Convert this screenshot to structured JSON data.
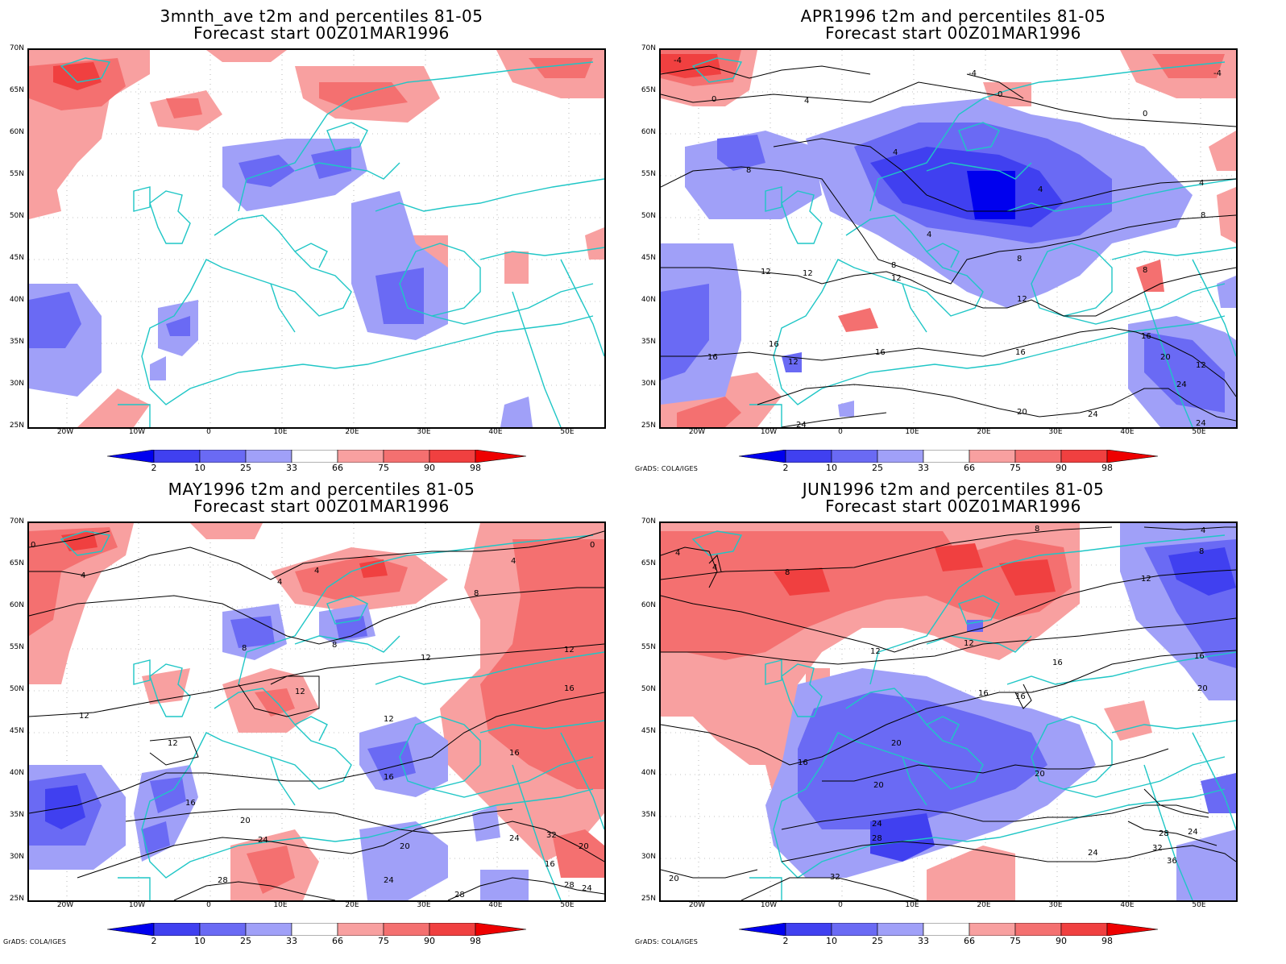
{
  "colors": {
    "coast": "#1fc6c6",
    "contour": "#000000",
    "cold_very": "#0000ee",
    "cold_strong": "#4040f0",
    "cold_mid": "#6a6af4",
    "cold_light": "#a0a0f8",
    "warm_light": "#f8a0a0",
    "warm_mid": "#f47070",
    "warm_strong": "#f04040",
    "warm_very": "#ee0000"
  },
  "axes": {
    "lat_labels": [
      "70N",
      "65N",
      "60N",
      "55N",
      "50N",
      "45N",
      "40N",
      "35N",
      "30N",
      "25N"
    ],
    "lon_labels": [
      "20W",
      "10W",
      "0",
      "10E",
      "20E",
      "30E",
      "40E",
      "50E"
    ]
  },
  "colorbar": {
    "labels": [
      "2",
      "10",
      "25",
      "33",
      "66",
      "75",
      "90",
      "98"
    ],
    "colors": [
      "#0000ee",
      "#4040f0",
      "#6a6af4",
      "#a0a0f8",
      "#ffffff",
      "#f8a0a0",
      "#f47070",
      "#f04040",
      "#ee0000"
    ]
  },
  "credit": "GrADS: COLA/IGES",
  "panels": [
    {
      "id": "3mnth",
      "title_line1": "3mnth_ave t2m and percentiles 81-05",
      "title_line2": "Forecast start 00Z01MAR1996",
      "show_credit": false,
      "contour_labels": []
    },
    {
      "id": "apr",
      "title_line1": "APR1996 t2m and percentiles 81-05",
      "title_line2": "Forecast start 00Z01MAR1996",
      "show_credit": true,
      "contour_labels": [
        "-4",
        "0",
        "4",
        "0",
        "-4",
        "4",
        "0",
        "8",
        "4",
        "4",
        "-4",
        "8",
        "4",
        "12",
        "8",
        "12",
        "8",
        "8",
        "12",
        "16",
        "12",
        "16",
        "16",
        "16",
        "12",
        "16",
        "20",
        "12",
        "24",
        "20",
        "24",
        "24",
        "24"
      ]
    },
    {
      "id": "may",
      "title_line1": "MAY1996 t2m and percentiles 81-05",
      "title_line2": "Forecast start 00Z01MAR1996",
      "show_credit": true,
      "contour_labels": [
        "0",
        "4",
        "4",
        "4",
        "4",
        "0",
        "8",
        "8",
        "8",
        "12",
        "12",
        "12",
        "12",
        "16",
        "12",
        "12",
        "16",
        "16",
        "16",
        "20",
        "24",
        "20",
        "24",
        "16",
        "20",
        "28",
        "32",
        "24",
        "28",
        "28",
        "24"
      ]
    },
    {
      "id": "jun",
      "title_line1": "JUN1996 t2m and percentiles 81-05",
      "title_line2": "Forecast start 00Z01MAR1996",
      "show_credit": true,
      "contour_labels": [
        "4",
        "4",
        "8",
        "8",
        "8",
        "4",
        "12",
        "12",
        "12",
        "16",
        "16",
        "16",
        "20",
        "16",
        "20",
        "16",
        "20",
        "24",
        "28",
        "24",
        "28",
        "20",
        "32",
        "24",
        "36",
        "32",
        "20"
      ]
    }
  ]
}
